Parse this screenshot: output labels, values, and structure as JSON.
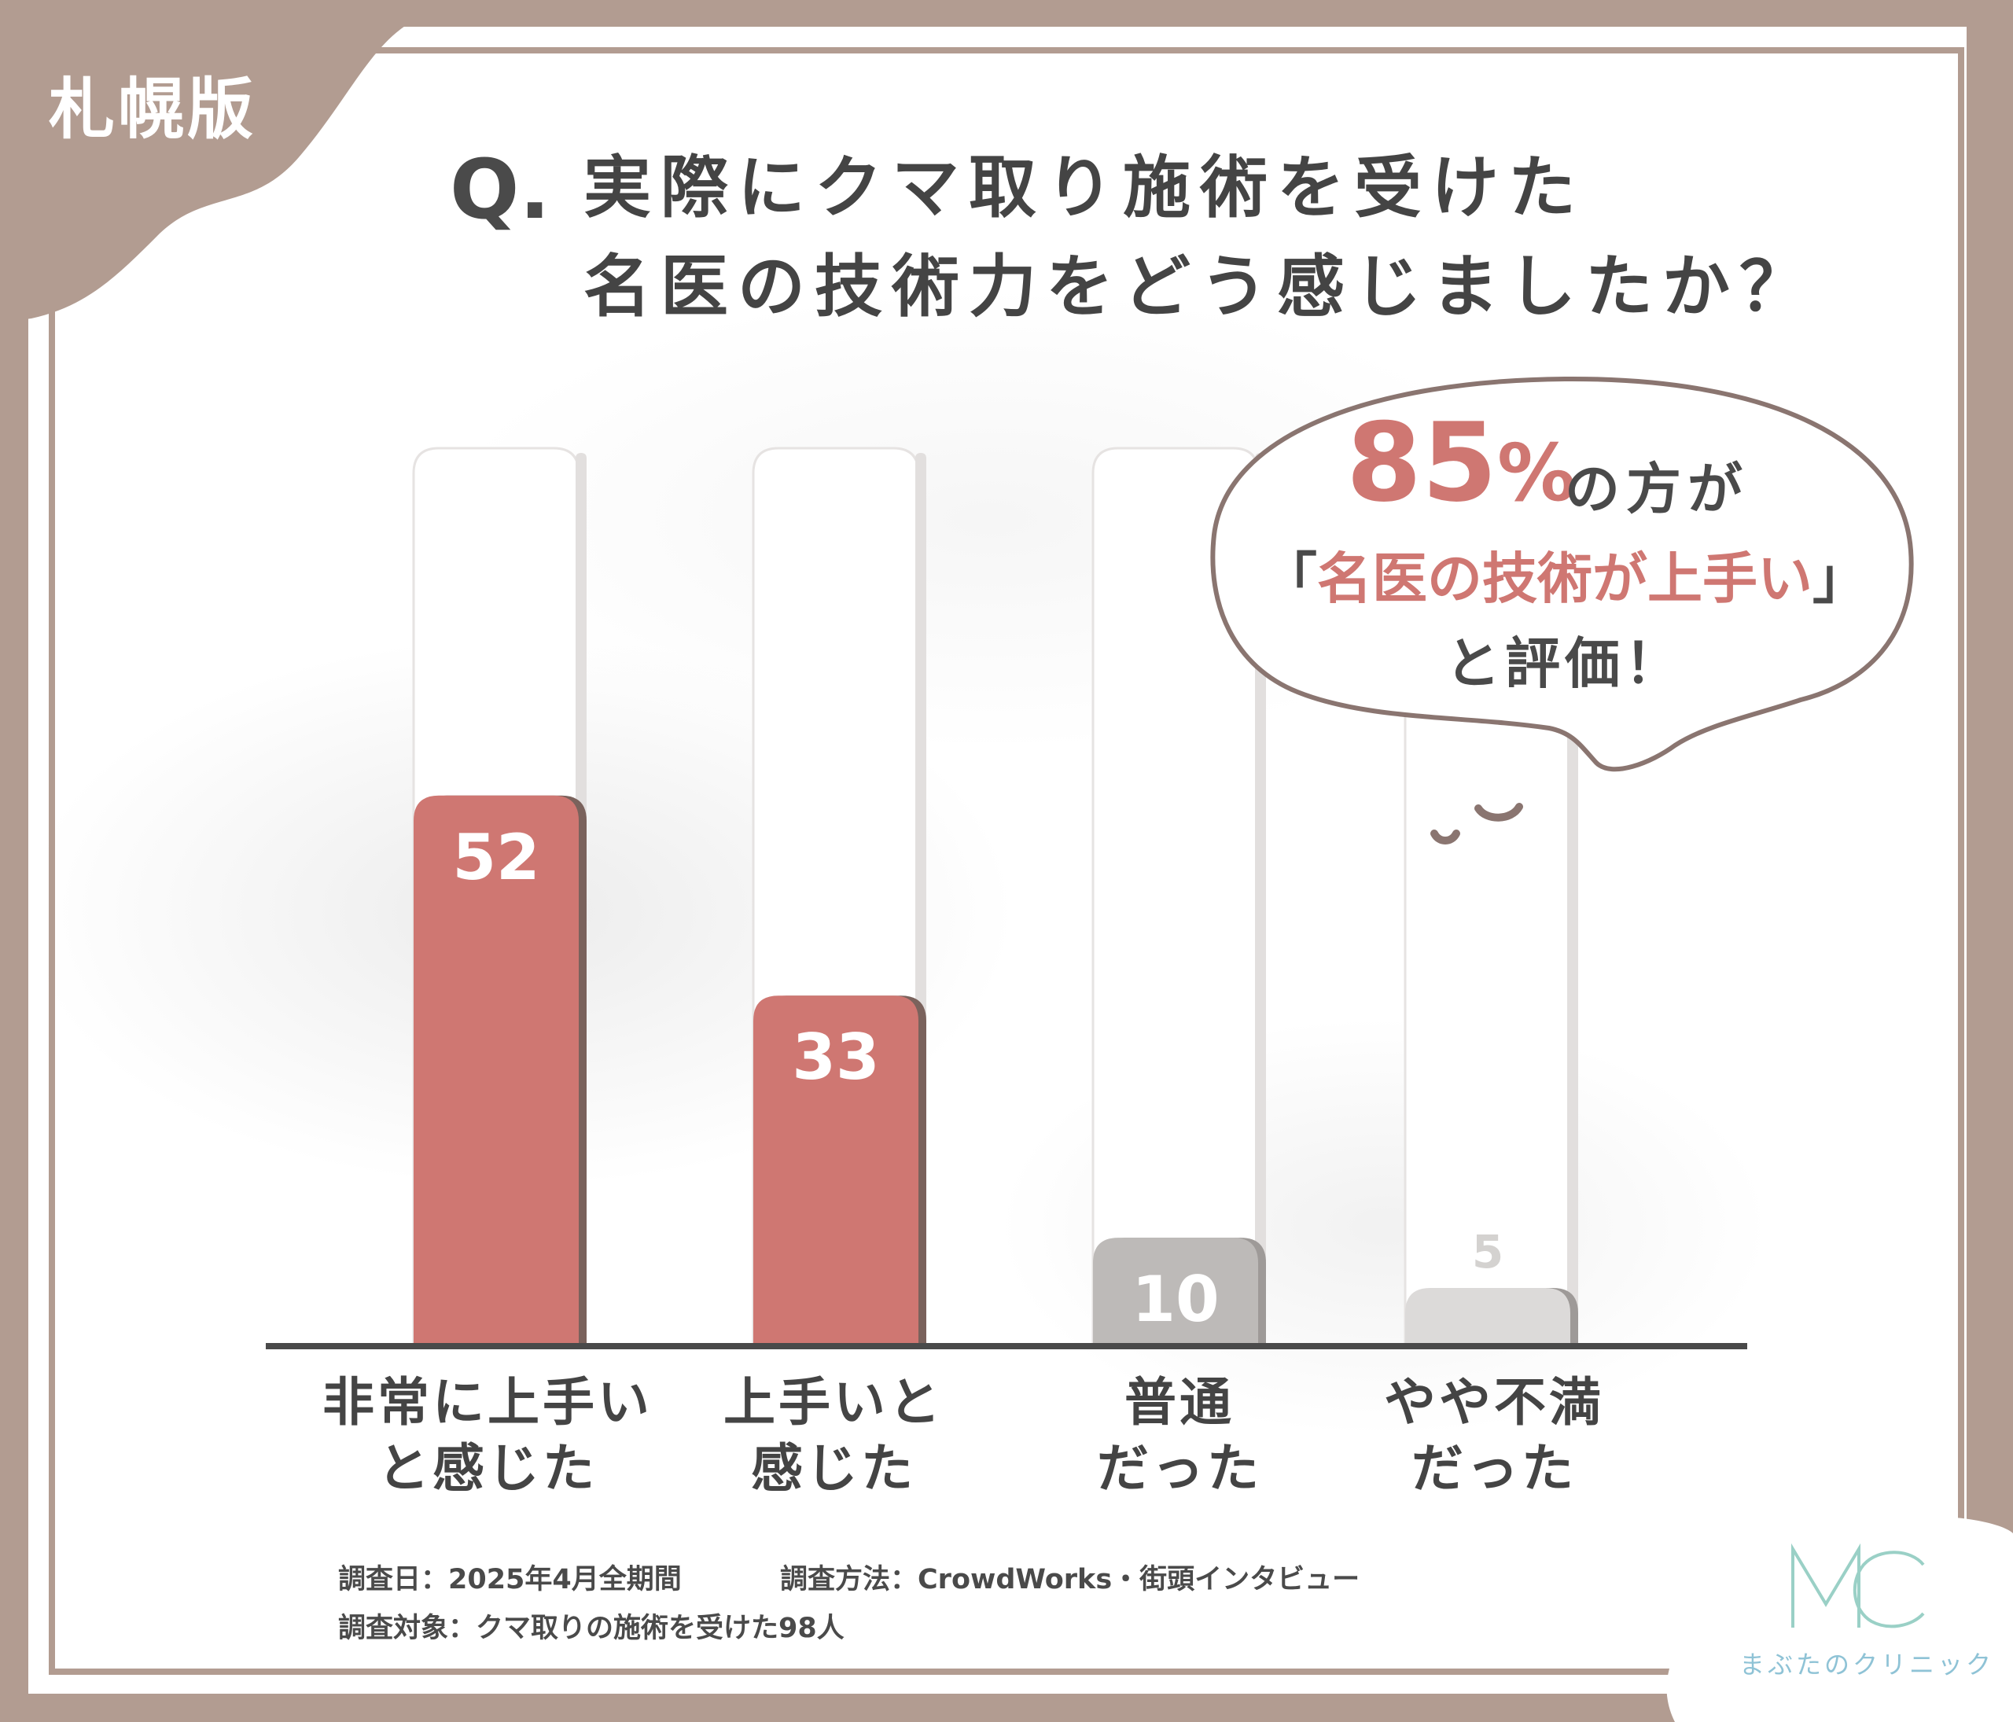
{
  "region_label": "札幌版",
  "question": {
    "prefix": "Q.",
    "line1": "実際にクマ取り施術を受けた",
    "line2": "名医の技術力をどう感じましたか？"
  },
  "callout": {
    "percent_value": "85",
    "percent_unit": "%",
    "line1_rest": "の方が",
    "line2_open": "「",
    "line2_highlight": "名医の技術が上手い",
    "line2_close": "」",
    "line3": "と評価！"
  },
  "chart_data": {
    "type": "bar",
    "categories": [
      "非常に上手いと感じた",
      "上手いと感じた",
      "普通だった",
      "やや不満だった"
    ],
    "category_lines": [
      [
        "非常に上手い",
        "と感じた"
      ],
      [
        "上手いと",
        "感じた"
      ],
      [
        "普通",
        "だった"
      ],
      [
        "やや不満",
        "だった"
      ]
    ],
    "values": [
      52,
      33,
      10,
      5
    ],
    "data_labels": [
      "52",
      "33",
      "10",
      "5"
    ],
    "bar_colors": [
      "#cf7772",
      "#cf7772",
      "#bdbab8",
      "#dcdad9"
    ],
    "label_colors": [
      "#ffffff",
      "#ffffff",
      "#ffffff",
      "#d4d2d0"
    ],
    "ylim": [
      0,
      85
    ],
    "title": "",
    "xlabel": "",
    "ylabel": "",
    "grid": false,
    "legend": "none"
  },
  "footnotes": {
    "date": "調査日：2025年4月全期間",
    "method": "調査方法：CrowdWorks・街頭インタビュー",
    "target": "調査対象：クマ取りの施術を受けた98人"
  },
  "brand": {
    "logo_icon": "mc-monogram-icon",
    "name": "まぶたのクリニック",
    "color": "#8fc3d6"
  },
  "colors": {
    "frame": "#b29c91",
    "accent": "#cf7772",
    "text": "#444444"
  }
}
